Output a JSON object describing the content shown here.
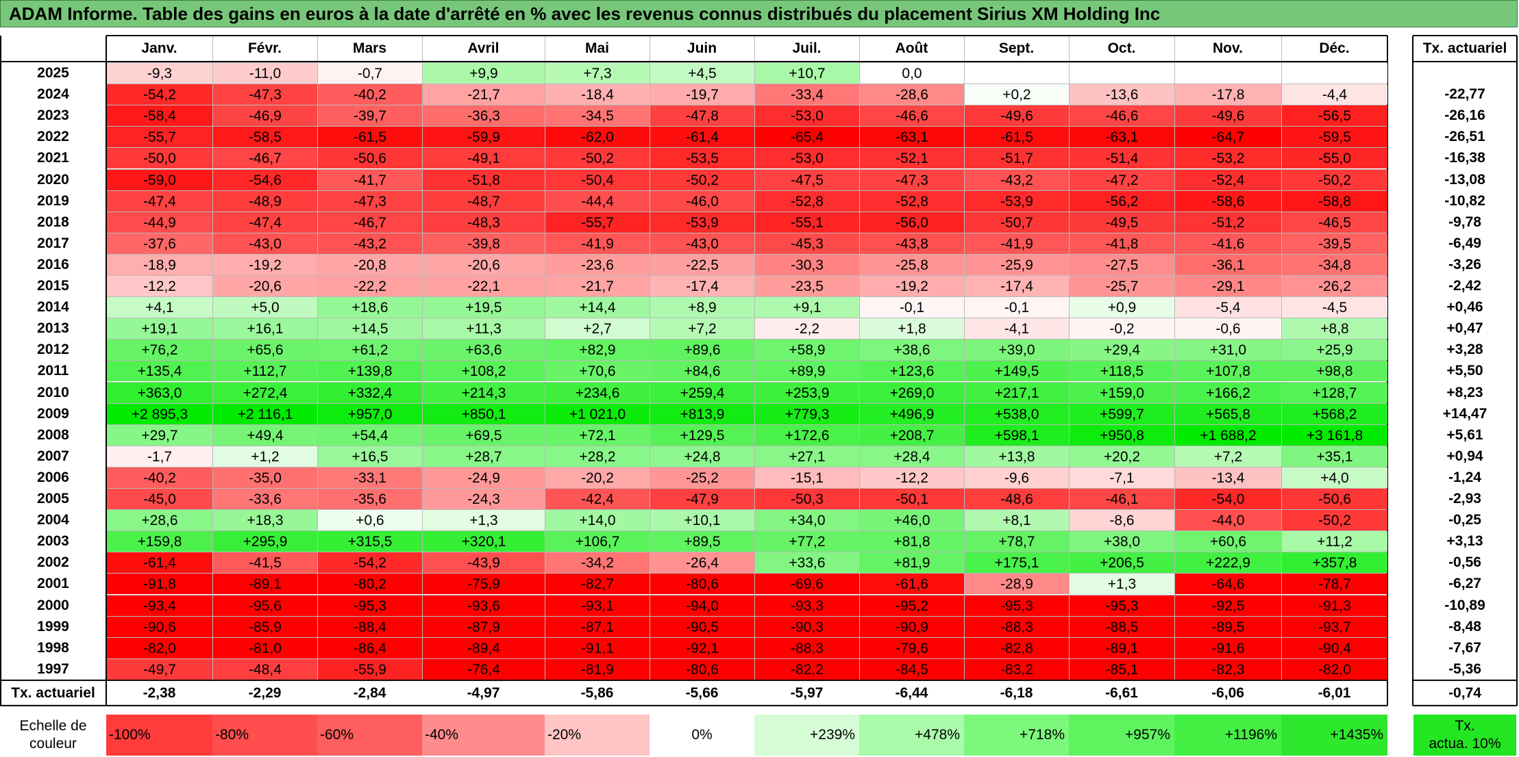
{
  "title": "ADAM Informe. Table des gains en euros à la date d'arrêté en % avec les revenus connus distribués du placement Sirius XM Holding Inc",
  "chart_data": {
    "type": "heatmap",
    "columns": [
      "Janv.",
      "Févr.",
      "Mars",
      "Avril",
      "Mai",
      "Juin",
      "Juil.",
      "Août",
      "Sept.",
      "Oct.",
      "Nov.",
      "Déc."
    ],
    "annual_header": "Tx. actuariel",
    "rows": [
      {
        "year": "2025",
        "values": [
          "-9,3",
          "-11,0",
          "-0,7",
          "+9,9",
          "+7,3",
          "+4,5",
          "+10,7",
          "0,0",
          "",
          "",
          "",
          ""
        ],
        "annual": ""
      },
      {
        "year": "2024",
        "values": [
          "-54,2",
          "-47,3",
          "-40,2",
          "-21,7",
          "-18,4",
          "-19,7",
          "-33,4",
          "-28,6",
          "+0,2",
          "-13,6",
          "-17,8",
          "-4,4"
        ],
        "annual": "-22,77"
      },
      {
        "year": "2023",
        "values": [
          "-58,4",
          "-46,9",
          "-39,7",
          "-36,3",
          "-34,5",
          "-47,8",
          "-53,0",
          "-46,6",
          "-49,6",
          "-46,6",
          "-49,6",
          "-56,5"
        ],
        "annual": "-26,16"
      },
      {
        "year": "2022",
        "values": [
          "-55,7",
          "-58,5",
          "-61,5",
          "-59,9",
          "-62,0",
          "-61,4",
          "-65,4",
          "-63,1",
          "-61,5",
          "-63,1",
          "-64,7",
          "-59,5"
        ],
        "annual": "-26,51"
      },
      {
        "year": "2021",
        "values": [
          "-50,0",
          "-46,7",
          "-50,6",
          "-49,1",
          "-50,2",
          "-53,5",
          "-53,0",
          "-52,1",
          "-51,7",
          "-51,4",
          "-53,2",
          "-55,0"
        ],
        "annual": "-16,38"
      },
      {
        "year": "2020",
        "values": [
          "-59,0",
          "-54,6",
          "-41,7",
          "-51,8",
          "-50,4",
          "-50,2",
          "-47,5",
          "-47,3",
          "-43,2",
          "-47,2",
          "-52,4",
          "-50,2"
        ],
        "annual": "-13,08"
      },
      {
        "year": "2019",
        "values": [
          "-47,4",
          "-48,9",
          "-47,3",
          "-48,7",
          "-44,4",
          "-46,0",
          "-52,8",
          "-52,8",
          "-53,9",
          "-56,2",
          "-58,6",
          "-58,8"
        ],
        "annual": "-10,82"
      },
      {
        "year": "2018",
        "values": [
          "-44,9",
          "-47,4",
          "-46,7",
          "-48,3",
          "-55,7",
          "-53,9",
          "-55,1",
          "-56,0",
          "-50,7",
          "-49,5",
          "-51,2",
          "-46,5"
        ],
        "annual": "-9,78"
      },
      {
        "year": "2017",
        "values": [
          "-37,6",
          "-43,0",
          "-43,2",
          "-39,8",
          "-41,9",
          "-43,0",
          "-45,3",
          "-43,8",
          "-41,9",
          "-41,8",
          "-41,6",
          "-39,5"
        ],
        "annual": "-6,49"
      },
      {
        "year": "2016",
        "values": [
          "-18,9",
          "-19,2",
          "-20,8",
          "-20,6",
          "-23,6",
          "-22,5",
          "-30,3",
          "-25,8",
          "-25,9",
          "-27,5",
          "-36,1",
          "-34,8"
        ],
        "annual": "-3,26"
      },
      {
        "year": "2015",
        "values": [
          "-12,2",
          "-20,6",
          "-22,2",
          "-22,1",
          "-21,7",
          "-17,4",
          "-23,5",
          "-19,2",
          "-17,4",
          "-25,7",
          "-29,1",
          "-26,2"
        ],
        "annual": "-2,42"
      },
      {
        "year": "2014",
        "values": [
          "+4,1",
          "+5,0",
          "+18,6",
          "+19,5",
          "+14,4",
          "+8,9",
          "+9,1",
          "-0,1",
          "-0,1",
          "+0,9",
          "-5,4",
          "-4,5"
        ],
        "annual": "+0,46"
      },
      {
        "year": "2013",
        "values": [
          "+19,1",
          "+16,1",
          "+14,5",
          "+11,3",
          "+2,7",
          "+7,2",
          "-2,2",
          "+1,8",
          "-4,1",
          "-0,2",
          "-0,6",
          "+8,8"
        ],
        "annual": "+0,47"
      },
      {
        "year": "2012",
        "values": [
          "+76,2",
          "+65,6",
          "+61,2",
          "+63,6",
          "+82,9",
          "+89,6",
          "+58,9",
          "+38,6",
          "+39,0",
          "+29,4",
          "+31,0",
          "+25,9"
        ],
        "annual": "+3,28"
      },
      {
        "year": "2011",
        "values": [
          "+135,4",
          "+112,7",
          "+139,8",
          "+108,2",
          "+70,6",
          "+84,6",
          "+89,9",
          "+123,6",
          "+149,5",
          "+118,5",
          "+107,8",
          "+98,8"
        ],
        "annual": "+5,50"
      },
      {
        "year": "2010",
        "values": [
          "+363,0",
          "+272,4",
          "+332,4",
          "+214,3",
          "+234,6",
          "+259,4",
          "+253,9",
          "+269,0",
          "+217,1",
          "+159,0",
          "+166,2",
          "+128,7"
        ],
        "annual": "+8,23"
      },
      {
        "year": "2009",
        "values": [
          "+2 895,3",
          "+2 116,1",
          "+957,0",
          "+850,1",
          "+1 021,0",
          "+813,9",
          "+779,3",
          "+496,9",
          "+538,0",
          "+599,7",
          "+565,8",
          "+568,2"
        ],
        "annual": "+14,47"
      },
      {
        "year": "2008",
        "values": [
          "+29,7",
          "+49,4",
          "+54,4",
          "+69,5",
          "+72,1",
          "+129,5",
          "+172,6",
          "+208,7",
          "+598,1",
          "+950,8",
          "+1 688,2",
          "+3 161,8"
        ],
        "annual": "+5,61"
      },
      {
        "year": "2007",
        "values": [
          "-1,7",
          "+1,2",
          "+16,5",
          "+28,7",
          "+28,2",
          "+24,8",
          "+27,1",
          "+28,4",
          "+13,8",
          "+20,2",
          "+7,2",
          "+35,1"
        ],
        "annual": "+0,94"
      },
      {
        "year": "2006",
        "values": [
          "-40,2",
          "-35,0",
          "-33,1",
          "-24,9",
          "-20,2",
          "-25,2",
          "-15,1",
          "-12,2",
          "-9,6",
          "-7,1",
          "-13,4",
          "+4,0"
        ],
        "annual": "-1,24"
      },
      {
        "year": "2005",
        "values": [
          "-45,0",
          "-33,6",
          "-35,6",
          "-24,3",
          "-42,4",
          "-47,9",
          "-50,3",
          "-50,1",
          "-48,6",
          "-46,1",
          "-54,0",
          "-50,6"
        ],
        "annual": "-2,93"
      },
      {
        "year": "2004",
        "values": [
          "+28,6",
          "+18,3",
          "+0,6",
          "+1,3",
          "+14,0",
          "+10,1",
          "+34,0",
          "+46,0",
          "+8,1",
          "-8,6",
          "-44,0",
          "-50,2"
        ],
        "annual": "-0,25"
      },
      {
        "year": "2003",
        "values": [
          "+159,8",
          "+295,9",
          "+315,5",
          "+320,1",
          "+106,7",
          "+89,5",
          "+77,2",
          "+81,8",
          "+78,7",
          "+38,0",
          "+60,6",
          "+11,2"
        ],
        "annual": "+3,13"
      },
      {
        "year": "2002",
        "values": [
          "-61,4",
          "-41,5",
          "-54,2",
          "-43,9",
          "-34,2",
          "-26,4",
          "+33,6",
          "+81,9",
          "+175,1",
          "+206,5",
          "+222,9",
          "+357,8"
        ],
        "annual": "-0,56"
      },
      {
        "year": "2001",
        "values": [
          "-91,8",
          "-89,1",
          "-80,2",
          "-75,9",
          "-82,7",
          "-80,6",
          "-69,6",
          "-61,6",
          "-28,9",
          "+1,3",
          "-64,6",
          "-78,7"
        ],
        "annual": "-6,27"
      },
      {
        "year": "2000",
        "values": [
          "-93,4",
          "-95,6",
          "-95,3",
          "-93,6",
          "-93,1",
          "-94,0",
          "-93,3",
          "-95,2",
          "-95,3",
          "-95,3",
          "-92,5",
          "-91,3"
        ],
        "annual": "-10,89"
      },
      {
        "year": "1999",
        "values": [
          "-90,6",
          "-85,9",
          "-88,4",
          "-87,9",
          "-87,1",
          "-90,5",
          "-90,3",
          "-90,9",
          "-88,3",
          "-88,5",
          "-89,5",
          "-93,7"
        ],
        "annual": "-8,48"
      },
      {
        "year": "1998",
        "values": [
          "-82,0",
          "-81,0",
          "-86,4",
          "-89,4",
          "-91,1",
          "-92,1",
          "-88,3",
          "-79,6",
          "-82,8",
          "-89,1",
          "-91,6",
          "-90,4"
        ],
        "annual": "-7,67"
      },
      {
        "year": "1997",
        "values": [
          "-49,7",
          "-48,4",
          "-55,9",
          "-76,4",
          "-81,9",
          "-80,6",
          "-82,2",
          "-84,5",
          "-83,2",
          "-85,1",
          "-82,3",
          "-82,0"
        ],
        "annual": "-5,36"
      }
    ],
    "totals": {
      "label": "Tx. actuariel",
      "values": [
        "-2,38",
        "-2,29",
        "-2,84",
        "-4,97",
        "-5,86",
        "-5,66",
        "-5,97",
        "-6,44",
        "-6,18",
        "-6,61",
        "-6,06",
        "-6,01"
      ],
      "annual": "-0,74"
    },
    "legend": {
      "label_line1": "Echelle de",
      "label_line2": "couleur",
      "items": [
        {
          "text": "-100%",
          "color": "#ff3b3b"
        },
        {
          "text": "-80%",
          "color": "#ff4d4d"
        },
        {
          "text": "-60%",
          "color": "#ff5e5e"
        },
        {
          "text": "-40%",
          "color": "#ff8c8c"
        },
        {
          "text": "-20%",
          "color": "#ffc4c4"
        },
        {
          "text": "0%",
          "color": "#ffffff"
        },
        {
          "text": "+239%",
          "color": "#d6fdd6"
        },
        {
          "text": "+478%",
          "color": "#a9fba9"
        },
        {
          "text": "+718%",
          "color": "#7cf97c"
        },
        {
          "text": "+957%",
          "color": "#5ff45f"
        },
        {
          "text": "+1196%",
          "color": "#44ef44"
        },
        {
          "text": "+1435%",
          "color": "#2ee82e"
        }
      ],
      "annual_line1": "Tx.",
      "annual_line2": "actua. 10%",
      "annual_color": "#22e622"
    },
    "colors": {
      "title_bg": "#77c77a",
      "negative": "#ff0000",
      "positive": "#22e622",
      "neutral": "#ffffff"
    }
  }
}
